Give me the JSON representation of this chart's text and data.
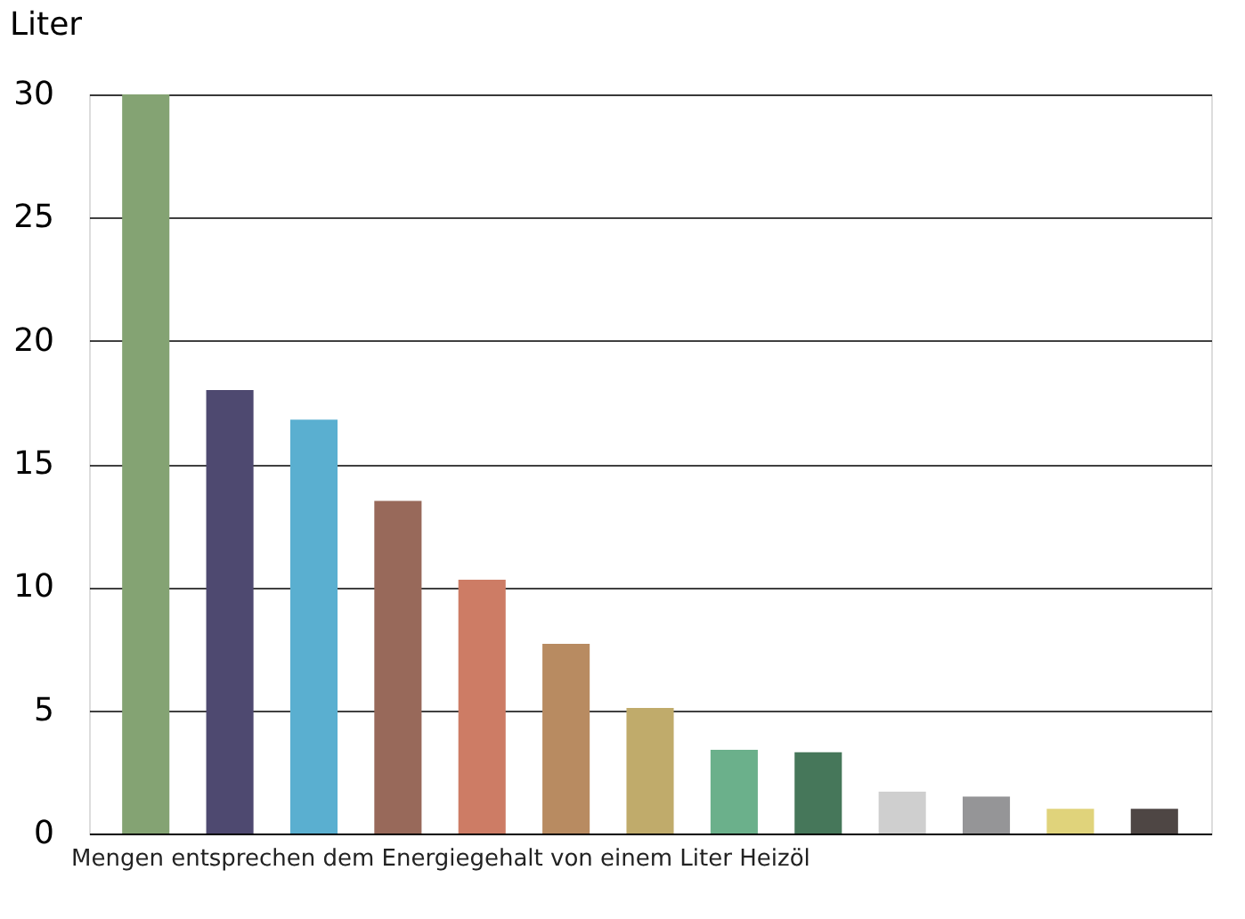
{
  "chart_data": {
    "type": "bar",
    "ylabel": "Liter",
    "categories": [
      null,
      null,
      null,
      null,
      null,
      null,
      null,
      null,
      null,
      null,
      null,
      null,
      null
    ],
    "values": [
      30,
      18,
      16.8,
      13.5,
      10.3,
      7.7,
      5.1,
      3.4,
      3.3,
      1.7,
      1.5,
      1.0,
      1.0
    ],
    "colors": [
      "#84a373",
      "#4e4970",
      "#5aafd0",
      "#98695a",
      "#cd7c65",
      "#b88b61",
      "#c0ab6b",
      "#6bb08b",
      "#46775a",
      "#cfcfcf",
      "#959597",
      "#e0d37b",
      "#4e4644"
    ],
    "ylim": [
      0,
      30
    ],
    "yticks": [
      0,
      5,
      10,
      15,
      20,
      25,
      30
    ],
    "grid": "y",
    "annotations": [
      "Mengen entsprechen dem Energiegehalt von einem Liter Heizöl"
    ]
  }
}
